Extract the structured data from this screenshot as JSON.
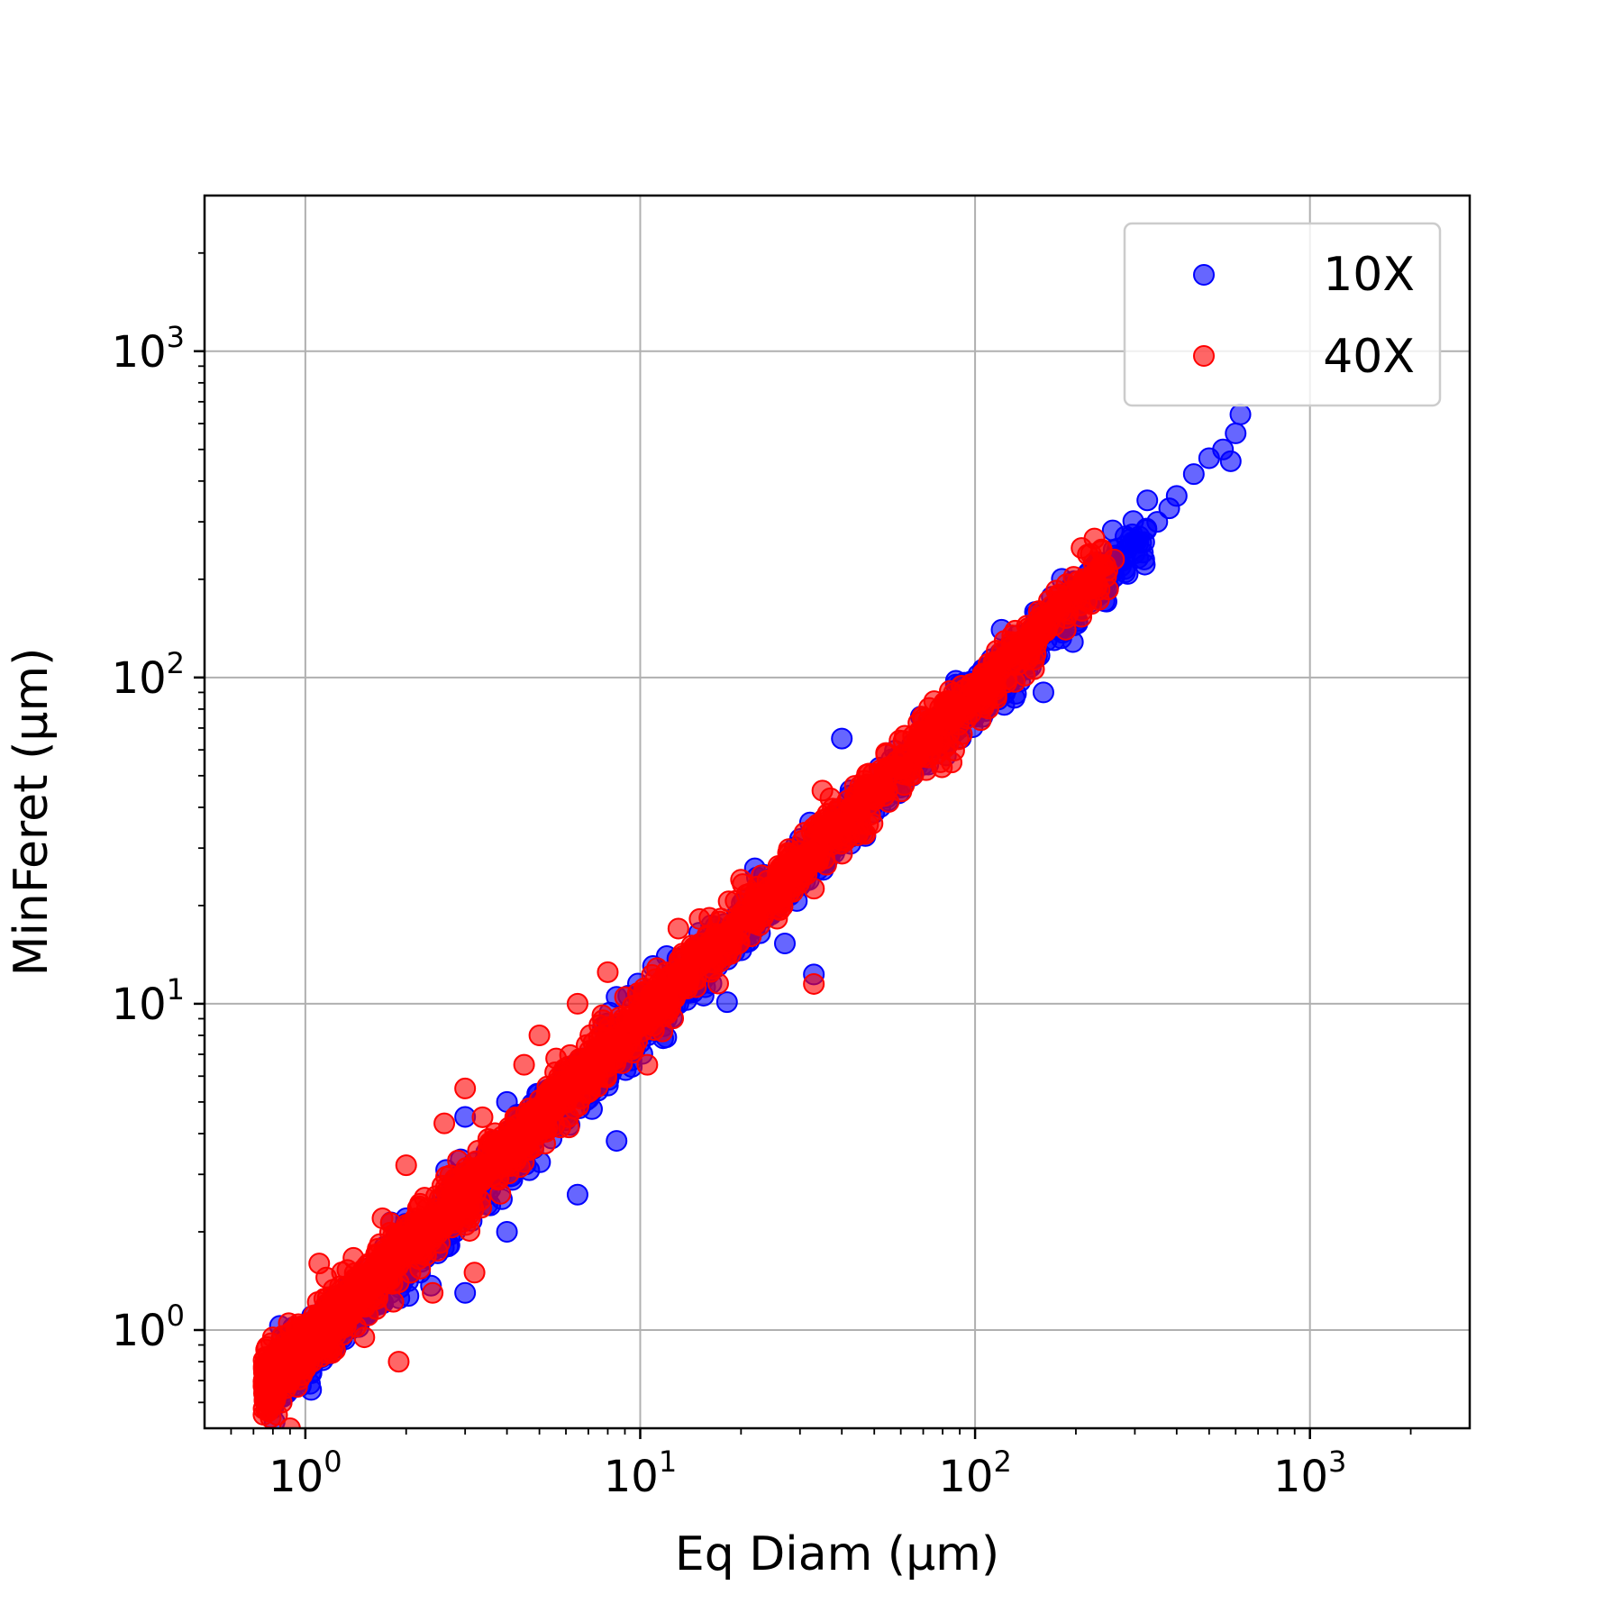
{
  "chart_data": {
    "type": "scatter",
    "title": "",
    "xlabel": "Eq Diam (μm)",
    "ylabel": "MinFeret (μm)",
    "xscale": "log",
    "yscale": "log",
    "xlim": [
      0.5,
      3000
    ],
    "ylim": [
      0.5,
      3000
    ],
    "grid": true,
    "legend_position": "top-right",
    "x_ticks": [
      {
        "base": "10",
        "exp": "0",
        "value": 1
      },
      {
        "base": "10",
        "exp": "1",
        "value": 10
      },
      {
        "base": "10",
        "exp": "2",
        "value": 100
      },
      {
        "base": "10",
        "exp": "3",
        "value": 1000
      }
    ],
    "y_ticks": [
      {
        "base": "10",
        "exp": "0",
        "value": 1
      },
      {
        "base": "10",
        "exp": "1",
        "value": 10
      },
      {
        "base": "10",
        "exp": "2",
        "value": 100
      },
      {
        "base": "10",
        "exp": "3",
        "value": 1000
      }
    ],
    "series": [
      {
        "name": "10X",
        "color": "#0000ff",
        "points": [
          [
            0.8,
            0.6
          ],
          [
            1.0,
            0.75
          ],
          [
            1.2,
            0.9
          ],
          [
            1.5,
            1.1
          ],
          [
            1.8,
            1.3
          ],
          [
            2.0,
            1.6
          ],
          [
            2.2,
            1.5
          ],
          [
            2.5,
            1.9
          ],
          [
            2.8,
            2.0
          ],
          [
            3.0,
            1.3
          ],
          [
            3.2,
            2.4
          ],
          [
            3.5,
            2.6
          ],
          [
            3.8,
            2.9
          ],
          [
            4.0,
            2.0
          ],
          [
            4.2,
            3.2
          ],
          [
            4.5,
            3.3
          ],
          [
            4.8,
            3.6
          ],
          [
            5.0,
            4.0
          ],
          [
            5.5,
            4.2
          ],
          [
            6.0,
            4.6
          ],
          [
            6.5,
            2.6
          ],
          [
            7.0,
            5.3
          ],
          [
            7.5,
            5.6
          ],
          [
            8.0,
            6.0
          ],
          [
            8.5,
            3.8
          ],
          [
            9.0,
            6.9
          ],
          [
            10.0,
            7.6
          ],
          [
            11.0,
            8.5
          ],
          [
            12.0,
            9.0
          ],
          [
            13.0,
            10.0
          ],
          [
            14.0,
            10.8
          ],
          [
            15.0,
            11.5
          ],
          [
            16.0,
            12.3
          ],
          [
            17.0,
            13.0
          ],
          [
            18.0,
            14.0
          ],
          [
            20.0,
            15.5
          ],
          [
            22.0,
            17.0
          ],
          [
            24.0,
            18.5
          ],
          [
            26.0,
            20.0
          ],
          [
            28.0,
            21.5
          ],
          [
            30.0,
            23.0
          ],
          [
            33.0,
            12.3
          ],
          [
            35.0,
            27.0
          ],
          [
            38.0,
            29.0
          ],
          [
            40.0,
            31.0
          ],
          [
            45.0,
            35.0
          ],
          [
            50.0,
            38.5
          ],
          [
            55.0,
            42.0
          ],
          [
            60.0,
            46.0
          ],
          [
            65.0,
            50.0
          ],
          [
            70.0,
            54.0
          ],
          [
            80.0,
            62.0
          ],
          [
            90.0,
            70.0
          ],
          [
            100.0,
            77.0
          ],
          [
            110.0,
            85.0
          ],
          [
            120.0,
            92.0
          ],
          [
            130.0,
            100.0
          ],
          [
            150.0,
            115.0
          ],
          [
            160.0,
            90.0
          ],
          [
            180.0,
            140.0
          ],
          [
            200.0,
            155.0
          ],
          [
            220.0,
            170.0
          ],
          [
            250.0,
            190.0
          ],
          [
            280.0,
            215.0
          ],
          [
            300.0,
            240.0
          ],
          [
            320.0,
            260.0
          ],
          [
            350.0,
            300.0
          ],
          [
            380.0,
            330.0
          ],
          [
            400.0,
            360.0
          ],
          [
            450.0,
            420.0
          ],
          [
            500.0,
            470.0
          ],
          [
            550.0,
            500.0
          ],
          [
            600.0,
            560.0
          ],
          [
            620.0,
            640.0
          ],
          [
            580.0,
            460.0
          ],
          [
            320.0,
            230.0
          ],
          [
            120.0,
            140.0
          ],
          [
            40.0,
            65.0
          ],
          [
            12.0,
            14.0
          ],
          [
            3.0,
            4.5
          ],
          [
            6.0,
            6.2
          ],
          [
            15.0,
            16.5
          ],
          [
            50.0,
            47.0
          ],
          [
            90.0,
            95.0
          ],
          [
            22.0,
            26.0
          ],
          [
            8.5,
            10.5
          ],
          [
            2.0,
            2.2
          ],
          [
            1.3,
            1.2
          ],
          [
            4.0,
            5.0
          ],
          [
            30.0,
            32.0
          ]
        ]
      },
      {
        "name": "40X",
        "color": "#ff0000",
        "points": [
          [
            0.75,
            0.55
          ],
          [
            0.78,
            0.8
          ],
          [
            0.8,
            0.7
          ],
          [
            0.85,
            0.6
          ],
          [
            0.9,
            0.75
          ],
          [
            0.95,
            0.85
          ],
          [
            1.0,
            0.95
          ],
          [
            1.05,
            0.8
          ],
          [
            1.1,
            1.0
          ],
          [
            1.2,
            1.05
          ],
          [
            1.3,
            1.1
          ],
          [
            1.4,
            1.3
          ],
          [
            1.5,
            1.2
          ],
          [
            1.6,
            1.4
          ],
          [
            1.7,
            1.5
          ],
          [
            1.8,
            1.6
          ],
          [
            1.9,
            1.4
          ],
          [
            2.0,
            1.7
          ],
          [
            2.1,
            2.0
          ],
          [
            2.2,
            1.9
          ],
          [
            2.3,
            2.1
          ],
          [
            2.5,
            2.2
          ],
          [
            2.7,
            2.4
          ],
          [
            2.9,
            2.6
          ],
          [
            3.0,
            2.5
          ],
          [
            3.2,
            2.8
          ],
          [
            3.4,
            3.0
          ],
          [
            3.6,
            3.2
          ],
          [
            3.8,
            3.5
          ],
          [
            4.0,
            3.6
          ],
          [
            4.3,
            3.8
          ],
          [
            4.6,
            4.1
          ],
          [
            5.0,
            4.4
          ],
          [
            5.4,
            4.8
          ],
          [
            5.8,
            5.2
          ],
          [
            6.2,
            5.5
          ],
          [
            6.6,
            6.0
          ],
          [
            7.0,
            6.3
          ],
          [
            7.5,
            6.8
          ],
          [
            8.0,
            7.2
          ],
          [
            8.5,
            7.8
          ],
          [
            9.0,
            8.2
          ],
          [
            9.5,
            8.8
          ],
          [
            10.0,
            9.2
          ],
          [
            11.0,
            10.0
          ],
          [
            12.0,
            11.0
          ],
          [
            13.0,
            12.0
          ],
          [
            14.0,
            13.0
          ],
          [
            15.0,
            14.0
          ],
          [
            16.0,
            15.0
          ],
          [
            18.0,
            16.5
          ],
          [
            20.0,
            18.5
          ],
          [
            22.0,
            20.5
          ],
          [
            24.0,
            22.5
          ],
          [
            26.0,
            24.0
          ],
          [
            28.0,
            26.0
          ],
          [
            30.0,
            28.0
          ],
          [
            33.0,
            11.5
          ],
          [
            35.0,
            32.0
          ],
          [
            38.0,
            35.0
          ],
          [
            40.0,
            37.0
          ],
          [
            45.0,
            41.0
          ],
          [
            50.0,
            46.0
          ],
          [
            55.0,
            50.0
          ],
          [
            60.0,
            55.0
          ],
          [
            65.0,
            60.0
          ],
          [
            70.0,
            65.0
          ],
          [
            80.0,
            73.0
          ],
          [
            90.0,
            82.0
          ],
          [
            100.0,
            92.0
          ],
          [
            110.0,
            100.0
          ],
          [
            120.0,
            110.0
          ],
          [
            130.0,
            120.0
          ],
          [
            140.0,
            130.0
          ],
          [
            150.0,
            140.0
          ],
          [
            160.0,
            150.0
          ],
          [
            180.0,
            165.0
          ],
          [
            200.0,
            185.0
          ],
          [
            230.0,
            210.0
          ],
          [
            260.0,
            230.0
          ],
          [
            8.0,
            12.5
          ],
          [
            5.0,
            8.0
          ],
          [
            2.0,
            3.2
          ],
          [
            1.1,
            1.6
          ],
          [
            3.0,
            5.5
          ],
          [
            1.5,
            0.95
          ],
          [
            1.9,
            0.8
          ],
          [
            3.2,
            1.5
          ],
          [
            0.9,
            0.5
          ],
          [
            13.0,
            17.0
          ],
          [
            35.0,
            45.0
          ],
          [
            20.0,
            24.0
          ],
          [
            2.6,
            4.3
          ],
          [
            1.7,
            2.2
          ],
          [
            4.5,
            6.5
          ],
          [
            6.5,
            10.0
          ],
          [
            10.5,
            6.5
          ],
          [
            2.4,
            1.3
          ],
          [
            1.2,
            0.85
          ],
          [
            0.8,
            0.95
          ]
        ]
      }
    ]
  }
}
